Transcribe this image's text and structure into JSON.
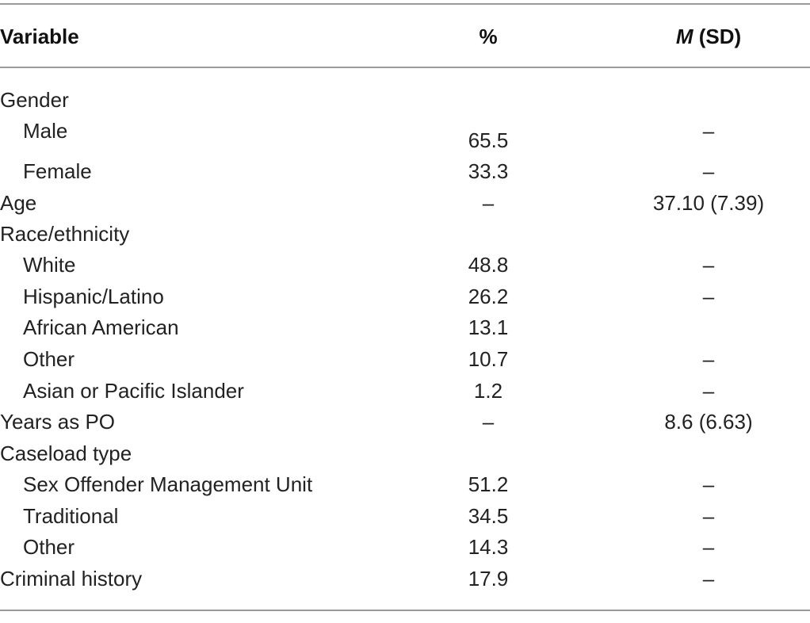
{
  "table": {
    "headers": {
      "variable": "Variable",
      "percent": "%",
      "m": "M",
      "sd": " (SD)"
    },
    "rows": [
      {
        "variable": "Gender",
        "percent": "",
        "msd": ""
      },
      {
        "variable": "Male",
        "percent": "65.5",
        "msd": "–"
      },
      {
        "variable": "Female",
        "percent": "33.3",
        "msd": "–"
      },
      {
        "variable": "Age",
        "percent": "–",
        "msd": "37.10 (7.39)"
      },
      {
        "variable": "Race/ethnicity",
        "percent": "",
        "msd": ""
      },
      {
        "variable": "White",
        "percent": "48.8",
        "msd": "–"
      },
      {
        "variable": "Hispanic/Latino",
        "percent": "26.2",
        "msd": "–"
      },
      {
        "variable": "African American",
        "percent": "13.1",
        "msd": ""
      },
      {
        "variable": "Other",
        "percent": "10.7",
        "msd": "–"
      },
      {
        "variable": "Asian or Pacific Islander",
        "percent": "1.2",
        "msd": "–"
      },
      {
        "variable": "Years as PO",
        "percent": "–",
        "msd": "8.6 (6.63)"
      },
      {
        "variable": "Caseload type",
        "percent": "",
        "msd": ""
      },
      {
        "variable": "Sex Offender Management Unit",
        "percent": "51.2",
        "msd": "–"
      },
      {
        "variable": "Traditional",
        "percent": "34.5",
        "msd": "–"
      },
      {
        "variable": "Other",
        "percent": "14.3",
        "msd": "–"
      },
      {
        "variable": "Criminal history",
        "percent": "17.9",
        "msd": "–"
      }
    ]
  }
}
